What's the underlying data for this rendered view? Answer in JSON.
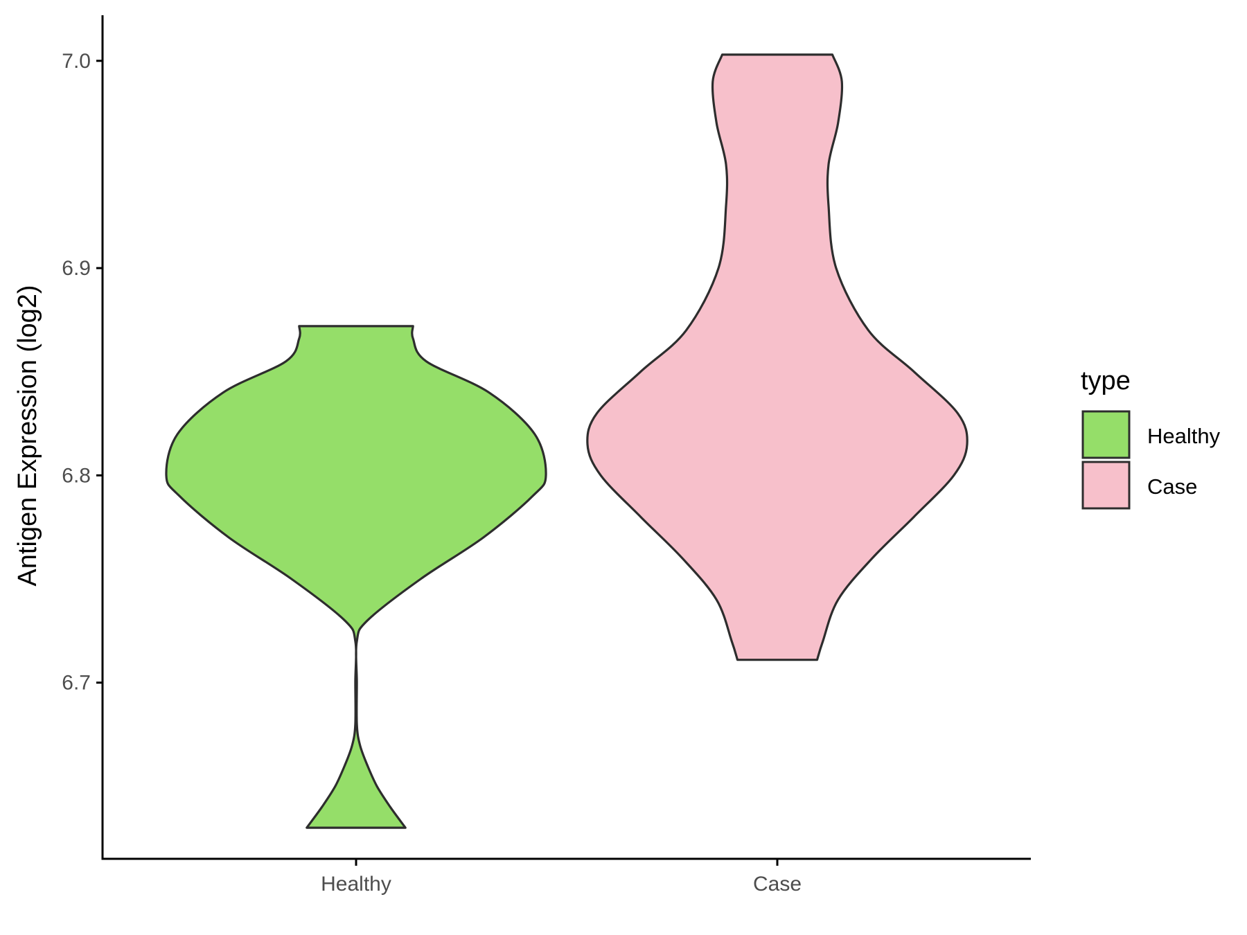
{
  "chart_data": {
    "type": "violin",
    "categories": [
      "Healthy",
      "Case"
    ],
    "xlabel": "",
    "ylabel": "Antigen Expression (log2)",
    "ylim": [
      6.615,
      7.022
    ],
    "yticks": [
      "6.7",
      "6.8",
      "6.9",
      "7.0"
    ],
    "grid": false,
    "legend": {
      "title": "type",
      "position": "right",
      "entries": [
        "Healthy",
        "Case"
      ]
    },
    "series": [
      {
        "name": "Healthy",
        "color": "#95de69",
        "range": [
          6.63,
          6.872
        ],
        "density_profile": [
          [
            6.63,
            0.26
          ],
          [
            6.64,
            0.18
          ],
          [
            6.65,
            0.11
          ],
          [
            6.66,
            0.06
          ],
          [
            6.67,
            0.02
          ],
          [
            6.68,
            0.0
          ],
          [
            6.7,
            0.0
          ],
          [
            6.72,
            0.0
          ],
          [
            6.73,
            0.06
          ],
          [
            6.75,
            0.34
          ],
          [
            6.77,
            0.67
          ],
          [
            6.79,
            0.93
          ],
          [
            6.8,
            1.0
          ],
          [
            6.82,
            0.94
          ],
          [
            6.84,
            0.7
          ],
          [
            6.855,
            0.37
          ],
          [
            6.866,
            0.3
          ],
          [
            6.872,
            0.3
          ]
        ]
      },
      {
        "name": "Case",
        "color": "#f7c0cb",
        "range": [
          6.711,
          7.003
        ],
        "density_profile": [
          [
            6.711,
            0.21
          ],
          [
            6.72,
            0.24
          ],
          [
            6.74,
            0.32
          ],
          [
            6.76,
            0.5
          ],
          [
            6.78,
            0.72
          ],
          [
            6.8,
            0.93
          ],
          [
            6.815,
            1.0
          ],
          [
            6.83,
            0.95
          ],
          [
            6.85,
            0.72
          ],
          [
            6.87,
            0.48
          ],
          [
            6.9,
            0.31
          ],
          [
            6.93,
            0.27
          ],
          [
            6.95,
            0.27
          ],
          [
            6.97,
            0.32
          ],
          [
            6.99,
            0.34
          ],
          [
            7.003,
            0.29
          ]
        ]
      }
    ]
  },
  "colors": {
    "outline": "#2d2d2d",
    "axis": "#000000",
    "tick_text": "#4d4d4d"
  }
}
